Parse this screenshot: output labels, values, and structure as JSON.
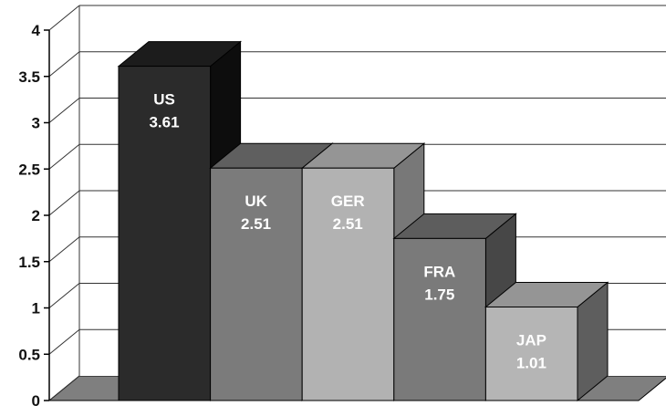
{
  "chart_data": {
    "type": "bar",
    "title": "",
    "xlabel": "",
    "ylabel": "",
    "categories": [
      "US",
      "UK",
      "GER",
      "FRA",
      "JAP"
    ],
    "values": [
      3.61,
      2.51,
      2.51,
      1.75,
      1.01
    ],
    "value_labels": [
      "3.61",
      "2.51",
      "2.51",
      "1.75",
      "1.01"
    ],
    "ylim": [
      0,
      4
    ],
    "yticks": [
      0,
      0.5,
      1,
      1.5,
      2,
      2.5,
      3,
      3.5,
      4
    ],
    "ytick_labels": [
      "0",
      "0.5",
      "1",
      "1.5",
      "2",
      "2.5",
      "3",
      "3.5",
      "4"
    ],
    "grid": true,
    "style": "3d",
    "bar_colors": [
      {
        "front": "#2b2b2b",
        "top": "#1c1c1c",
        "side": "#0d0d0d"
      },
      {
        "front": "#7b7b7b",
        "top": "#5f5f5f",
        "side": "#4b4b4b"
      },
      {
        "front": "#b2b2b2",
        "top": "#959595",
        "side": "#787878"
      },
      {
        "front": "#7a7a7a",
        "top": "#5d5d5d",
        "side": "#474747"
      },
      {
        "front": "#b5b5b5",
        "top": "#959595",
        "side": "#5e5e5e"
      }
    ],
    "floor_color": "#7f7f7f",
    "wall_color": "#ffffff",
    "grid_color": "#333333"
  }
}
